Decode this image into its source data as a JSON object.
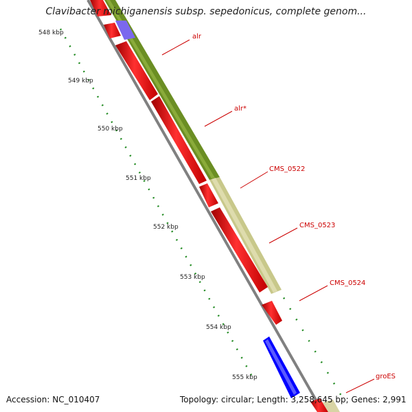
{
  "title": "Clavibacter michiganensis subsp. sepedonicus, complete genom...",
  "footer": {
    "accession": "Accession: NC_010407",
    "summary": "Topology: circular; Length: 3,258,645 bp; Genes: 2,991"
  },
  "ticks": [
    "548 kbp",
    "549 kbp",
    "550 kbp",
    "551 kbp",
    "552 kbp",
    "553 kbp",
    "554 kbp",
    "555 kbp"
  ],
  "gene_labels": [
    "alr",
    "alr*",
    "CMS_0522",
    "CMS_0523",
    "CMS_0524",
    "groES"
  ],
  "colors": {
    "cds": "#ff0000",
    "gene_olive": "#6b8e23",
    "gene_khaki": "#c8c88a",
    "blue": "#0000ff",
    "violet": "#7b68ee",
    "backbone": "#808080",
    "tick": "#228b22",
    "label": "#cc0000"
  }
}
